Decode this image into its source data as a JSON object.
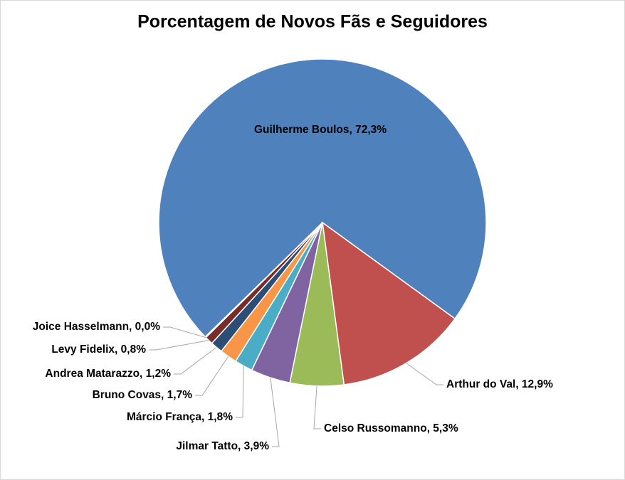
{
  "chart_data": {
    "type": "pie",
    "title": "Porcentagem de Novos Fãs e Seguidores",
    "values": [
      72.3,
      12.9,
      5.3,
      3.9,
      1.8,
      1.7,
      1.2,
      0.8,
      0.0
    ],
    "value_labels": [
      "Guilherme Boulos, 72,3%",
      "Arthur do Val, 12,9%",
      "Celso Russomanno, 5,3%",
      "Jilmar Tatto, 3,9%",
      "Márcio França, 1,8%",
      "Bruno Covas, 1,7%",
      "Andrea Matarazzo, 1,2%",
      "Levy Fidelix, 0,8%",
      "Joice Hasselmann, 0,0%"
    ],
    "colors": [
      "#4f81bd",
      "#c0504d",
      "#9bbb59",
      "#8064a2",
      "#4bacc6",
      "#f79646",
      "#2c4d75",
      "#772c2a",
      "#a04a47"
    ]
  }
}
